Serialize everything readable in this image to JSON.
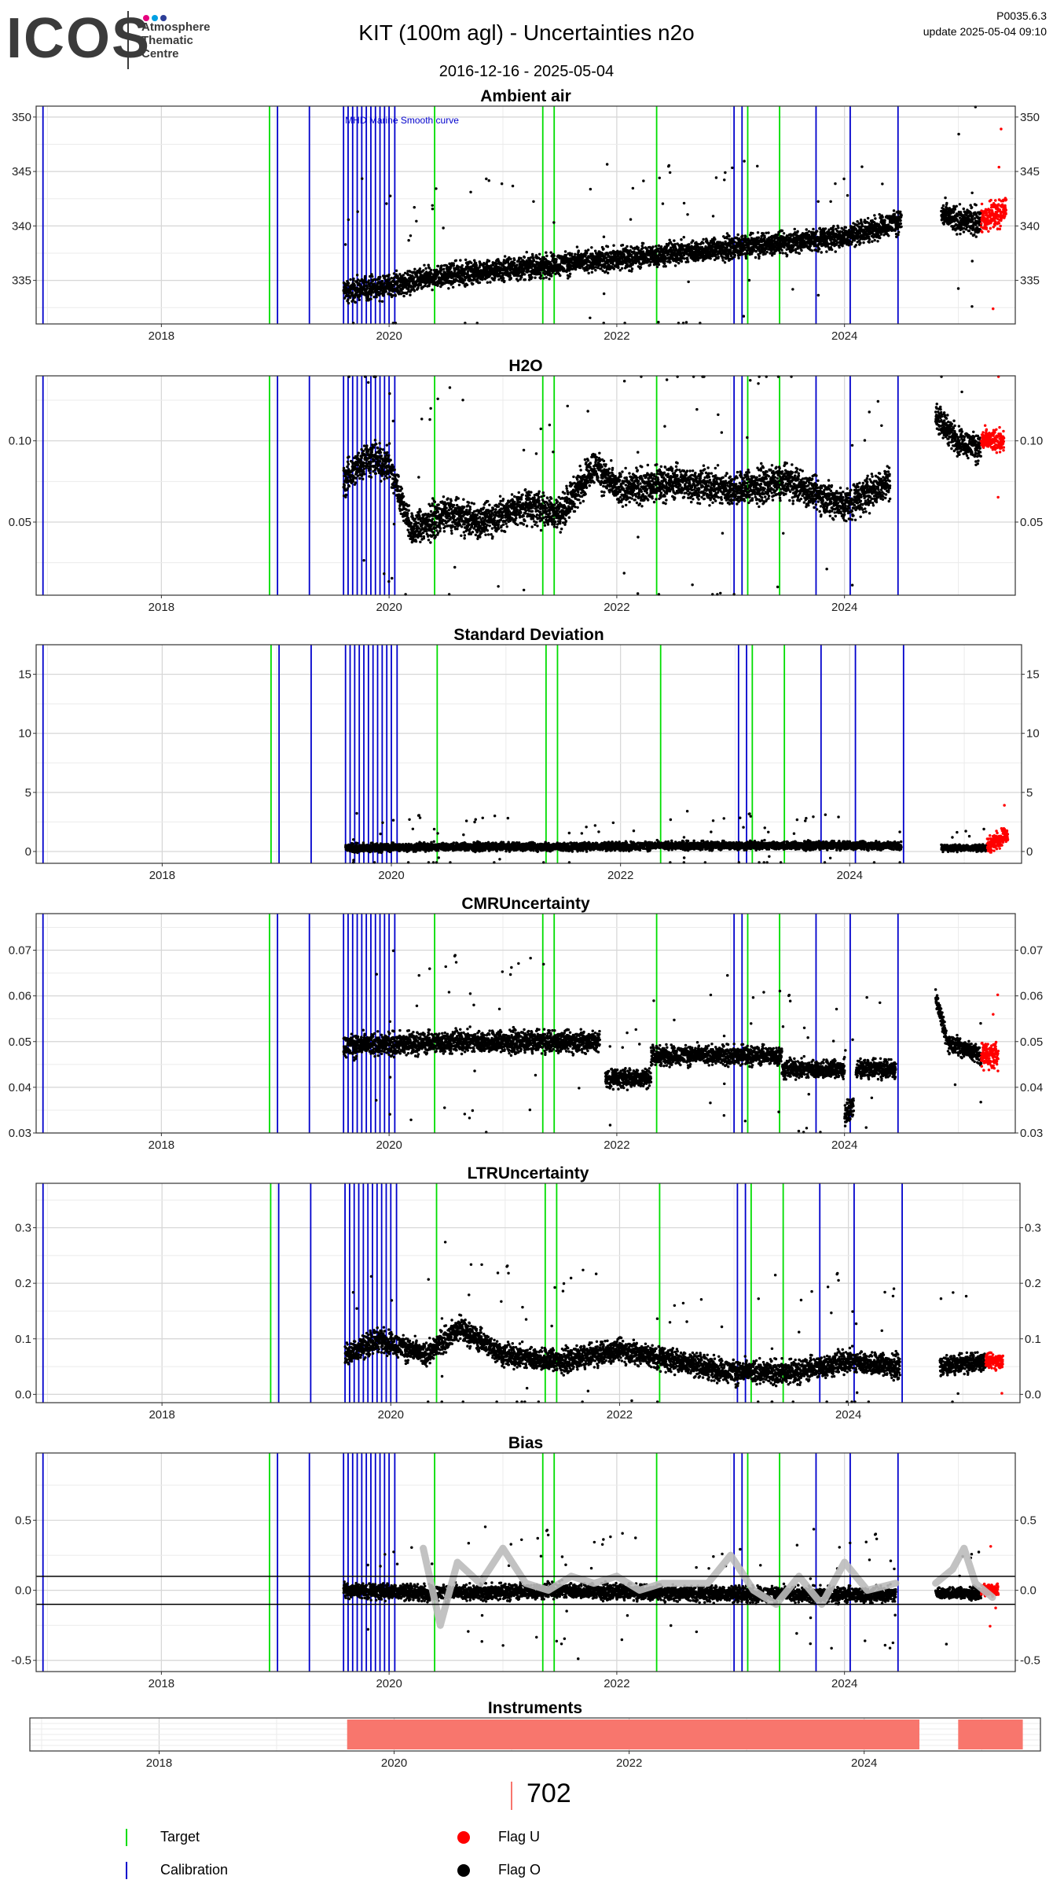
{
  "header": {
    "logo_text": "ICOS",
    "logo_subtitle": [
      "Atmosphere",
      "Thematic",
      "Centre"
    ],
    "title": "KIT  (100m agl) - Uncertainties n2o",
    "date_range": "2016-12-16 - 2025-05-04",
    "version": "P0035.6.3",
    "update": "update  2025-05-04 09:10"
  },
  "colors": {
    "target": "#00dd00",
    "calibration": "#0000cc",
    "flag_u": "#ff0000",
    "flag_o": "#000000",
    "instrument": "#f8766d",
    "bias_smooth": "#bbbbbb",
    "logo_dots": [
      "#e6007e",
      "#00a0e3",
      "#2c3e97"
    ]
  },
  "events": {
    "calibration_dates": [
      2016.96,
      2019.02,
      2019.3,
      2019.6,
      2019.64,
      2019.68,
      2019.72,
      2019.76,
      2019.8,
      2019.84,
      2019.88,
      2019.92,
      2019.96,
      2020.0,
      2020.05,
      2023.03,
      2023.1,
      2023.75,
      2024.05,
      2024.47
    ],
    "target_dates": [
      2018.95,
      2020.4,
      2021.35,
      2021.45,
      2022.35,
      2023.15,
      2023.43
    ]
  },
  "chart_data": [
    {
      "type": "scatter",
      "title": "Ambient air",
      "xlim": [
        2016.9,
        2025.5
      ],
      "ylim": [
        331,
        351
      ],
      "xticks": [
        2018,
        2020,
        2022,
        2024
      ],
      "yticks": [
        335,
        340,
        345,
        350
      ],
      "annotation": "MHD Marine Smooth curve",
      "segments": [
        {
          "x": [
            2019.6,
            2020.0,
            2020.5,
            2021.0,
            2021.5,
            2022.0,
            2022.5,
            2023.0,
            2023.5,
            2024.0,
            2024.5
          ],
          "y": [
            334,
            334.5,
            335.5,
            336,
            336.5,
            337,
            337.5,
            338,
            338.5,
            339,
            340.5
          ],
          "spread": 1.5,
          "flag": "O"
        },
        {
          "x": [
            2024.85,
            2025.0,
            2025.2
          ],
          "y": [
            341,
            340.5,
            340.5
          ],
          "spread": 1.8,
          "flag": "O"
        },
        {
          "x": [
            2025.2,
            2025.3,
            2025.42
          ],
          "y": [
            340.5,
            341,
            341.5
          ],
          "spread": 1.8,
          "flag": "U"
        }
      ]
    },
    {
      "type": "scatter",
      "title": "H2O",
      "xlim": [
        2016.9,
        2025.5
      ],
      "ylim": [
        0.005,
        0.14
      ],
      "xticks": [
        2018,
        2020,
        2022,
        2024
      ],
      "yticks": [
        0.05,
        0.1
      ],
      "ytick_labels": [
        "0.05",
        "0.10"
      ],
      "segments": [
        {
          "x": [
            2019.6,
            2019.8,
            2020.0,
            2020.2,
            2020.5,
            2020.8,
            2021.2,
            2021.5,
            2021.8,
            2022.0,
            2022.5,
            2023.0,
            2023.5,
            2024.0,
            2024.4
          ],
          "y": [
            0.075,
            0.09,
            0.085,
            0.045,
            0.055,
            0.05,
            0.06,
            0.055,
            0.085,
            0.07,
            0.075,
            0.07,
            0.075,
            0.06,
            0.075
          ],
          "spread": 0.015,
          "flag": "O"
        },
        {
          "x": [
            2024.8,
            2025.0,
            2025.2
          ],
          "y": [
            0.115,
            0.1,
            0.095
          ],
          "spread": 0.012,
          "flag": "O"
        },
        {
          "x": [
            2025.2,
            2025.3,
            2025.4
          ],
          "y": [
            0.1,
            0.1,
            0.1
          ],
          "spread": 0.01,
          "flag": "U"
        }
      ]
    },
    {
      "type": "scatter",
      "title": "Standard Deviation",
      "xlim": [
        2016.9,
        2025.5
      ],
      "ylim": [
        -1,
        17.5
      ],
      "xticks": [
        2018,
        2020,
        2022,
        2024
      ],
      "yticks": [
        0,
        5,
        10,
        15
      ],
      "segments": [
        {
          "x": [
            2019.6,
            2020.5,
            2021.5,
            2022.5,
            2023.5,
            2024.45
          ],
          "y": [
            0.3,
            0.4,
            0.4,
            0.5,
            0.5,
            0.5
          ],
          "spread": 0.5,
          "flag": "O"
        },
        {
          "x": [
            2024.8,
            2025.2
          ],
          "y": [
            0.3,
            0.3
          ],
          "spread": 0.4,
          "flag": "O"
        },
        {
          "x": [
            2025.2,
            2025.38
          ],
          "y": [
            0.5,
            1.5
          ],
          "spread": 1.0,
          "flag": "U"
        }
      ]
    },
    {
      "type": "scatter",
      "title": "CMRUncertainty",
      "xlim": [
        2016.9,
        2025.5
      ],
      "ylim": [
        0.03,
        0.078
      ],
      "xticks": [
        2018,
        2020,
        2022,
        2024
      ],
      "yticks": [
        0.03,
        0.04,
        0.05,
        0.06,
        0.07
      ],
      "ytick_labels": [
        "0.03",
        "0.04",
        "0.05",
        "0.06",
        "0.07"
      ],
      "segments": [
        {
          "x": [
            2019.6,
            2020.5,
            2021.0,
            2021.85
          ],
          "y": [
            0.049,
            0.05,
            0.05,
            0.05
          ],
          "spread": 0.0035,
          "flag": "O"
        },
        {
          "x": [
            2021.9,
            2022.3
          ],
          "y": [
            0.042,
            0.042
          ],
          "spread": 0.003,
          "flag": "O"
        },
        {
          "x": [
            2022.3,
            2023.45
          ],
          "y": [
            0.047,
            0.047
          ],
          "spread": 0.003,
          "flag": "O"
        },
        {
          "x": [
            2023.45,
            2024.0
          ],
          "y": [
            0.044,
            0.044
          ],
          "spread": 0.003,
          "flag": "O"
        },
        {
          "x": [
            2024.0,
            2024.08
          ],
          "y": [
            0.034,
            0.036
          ],
          "spread": 0.003,
          "flag": "O"
        },
        {
          "x": [
            2024.1,
            2024.45
          ],
          "y": [
            0.044,
            0.044
          ],
          "spread": 0.003,
          "flag": "O"
        },
        {
          "x": [
            2024.8,
            2024.9,
            2025.2
          ],
          "y": [
            0.06,
            0.05,
            0.047
          ],
          "spread": 0.003,
          "flag": "O"
        },
        {
          "x": [
            2025.2,
            2025.35
          ],
          "y": [
            0.047,
            0.047
          ],
          "spread": 0.004,
          "flag": "U"
        }
      ]
    },
    {
      "type": "scatter",
      "title": "LTRUncertainty",
      "xlim": [
        2016.9,
        2025.5
      ],
      "ylim": [
        -0.015,
        0.38
      ],
      "xticks": [
        2018,
        2020,
        2022,
        2024
      ],
      "yticks": [
        0.0,
        0.1,
        0.2,
        0.3
      ],
      "ytick_labels": [
        "0.0",
        "0.1",
        "0.2",
        "0.3"
      ],
      "segments": [
        {
          "x": [
            2019.6,
            2019.9,
            2020.3,
            2020.6,
            2021.0,
            2021.5,
            2022.0,
            2022.5,
            2023.0,
            2023.5,
            2024.0,
            2024.45
          ],
          "y": [
            0.07,
            0.1,
            0.07,
            0.12,
            0.07,
            0.06,
            0.08,
            0.06,
            0.04,
            0.04,
            0.06,
            0.05
          ],
          "spread": 0.03,
          "flag": "O"
        },
        {
          "x": [
            2024.8,
            2025.2
          ],
          "y": [
            0.05,
            0.06
          ],
          "spread": 0.025,
          "flag": "O"
        },
        {
          "x": [
            2025.2,
            2025.35
          ],
          "y": [
            0.06,
            0.06
          ],
          "spread": 0.02,
          "flag": "U"
        }
      ]
    },
    {
      "type": "scatter",
      "title": "Bias",
      "xlim": [
        2016.9,
        2025.5
      ],
      "ylim": [
        -0.58,
        0.98
      ],
      "xticks": [
        2018,
        2020,
        2022,
        2024
      ],
      "yticks": [
        -0.5,
        0.0,
        0.5
      ],
      "ytick_labels": [
        "-0.5",
        "0.0",
        "0.5"
      ],
      "hlines": [
        0.1,
        -0.1
      ],
      "segments": [
        {
          "x": [
            2019.6,
            2020.5,
            2021.5,
            2022.5,
            2023.5,
            2024.45
          ],
          "y": [
            0.0,
            -0.02,
            0.0,
            -0.02,
            -0.03,
            -0.03
          ],
          "spread": 0.08,
          "flag": "O"
        },
        {
          "x": [
            2024.8,
            2025.2
          ],
          "y": [
            -0.02,
            -0.02
          ],
          "spread": 0.06,
          "flag": "O"
        },
        {
          "x": [
            2025.2,
            2025.35
          ],
          "y": [
            0.0,
            0.0
          ],
          "spread": 0.06,
          "flag": "U"
        }
      ],
      "smooth": {
        "x": [
          2020.3,
          2020.45,
          2020.6,
          2020.8,
          2021.0,
          2021.2,
          2021.4,
          2021.6,
          2021.8,
          2022.0,
          2022.2,
          2022.4,
          2022.6,
          2022.8,
          2023.0,
          2023.2,
          2023.4,
          2023.6,
          2023.8,
          2024.0,
          2024.2,
          2024.45
        ],
        "y": [
          0.3,
          -0.25,
          0.2,
          0.05,
          0.3,
          0.05,
          0.0,
          0.1,
          0.05,
          0.1,
          0.0,
          0.05,
          0.05,
          0.05,
          0.25,
          0.0,
          -0.1,
          0.1,
          -0.1,
          0.2,
          0.0,
          0.05
        ],
        "x2": [
          2024.8,
          2024.95,
          2025.05,
          2025.15,
          2025.3
        ],
        "y2": [
          0.05,
          0.15,
          0.3,
          0.05,
          -0.05
        ]
      }
    },
    {
      "type": "bar",
      "title": "Instruments",
      "xlim": [
        2016.9,
        2025.5
      ],
      "xticks": [
        2018,
        2020,
        2022,
        2024
      ],
      "intervals": [
        [
          2019.6,
          2024.47
        ],
        [
          2024.8,
          2025.35
        ]
      ]
    }
  ],
  "legend": {
    "count": "702",
    "items": [
      {
        "label": "Target",
        "kind": "line",
        "color": "#00dd00"
      },
      {
        "label": "Calibration",
        "kind": "line",
        "color": "#0000cc"
      },
      {
        "label": "Flag U",
        "kind": "dot",
        "color": "#ff0000"
      },
      {
        "label": "Flag O",
        "kind": "dot",
        "color": "#000000"
      }
    ]
  }
}
